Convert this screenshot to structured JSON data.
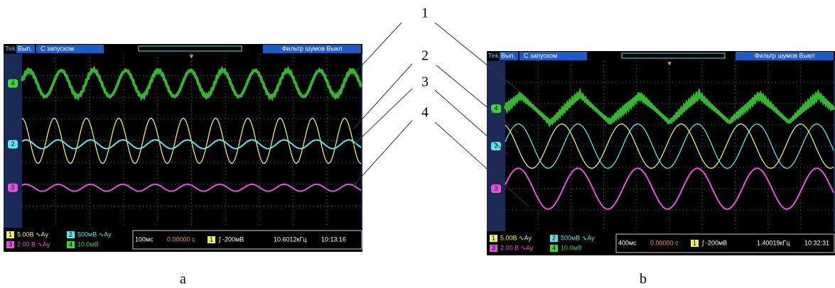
{
  "callouts": [
    "1",
    "2",
    "3",
    "4"
  ],
  "panels": [
    {
      "caption": "a",
      "header": {
        "brand": "Tek",
        "mode": "Вып.",
        "trigger": "С запуском",
        "filter": "Фильтр шумов Выкл"
      },
      "channel_markers": [
        "4",
        "2",
        "3"
      ],
      "channels": [
        {
          "number": "1",
          "setting": "5.00В ∿Ау"
        },
        {
          "number": "2",
          "setting": "500мВ ∿Ау"
        },
        {
          "number": "3",
          "setting": "2.00 В ∿Ау"
        },
        {
          "number": "4",
          "setting": "10.0мВ"
        }
      ],
      "timebase": "100мс",
      "delay": "0.00000 с",
      "trigger_channel": "1",
      "trigger_level": "∫ -200мВ",
      "frequency": "10.6012кГц",
      "time": "10:13:16"
    },
    {
      "caption": "b",
      "header": {
        "brand": "Tek",
        "mode": "Вып.",
        "trigger": "С запуском",
        "filter": "Фильтр шумов Выкл"
      },
      "channel_markers": [
        "4",
        "2",
        "3"
      ],
      "channels": [
        {
          "number": "1",
          "setting": "5.00В ∿Ау"
        },
        {
          "number": "2",
          "setting": "500мВ ∿Ау"
        },
        {
          "number": "3",
          "setting": "2.00 В ∿Ау"
        },
        {
          "number": "4",
          "setting": "10.0мВ"
        }
      ],
      "timebase": "400мс",
      "delay": "0.00000 с",
      "trigger_channel": "1",
      "trigger_level": "∫ -200мВ",
      "frequency": "1.40019кГц",
      "time": "10:32:31"
    }
  ]
}
